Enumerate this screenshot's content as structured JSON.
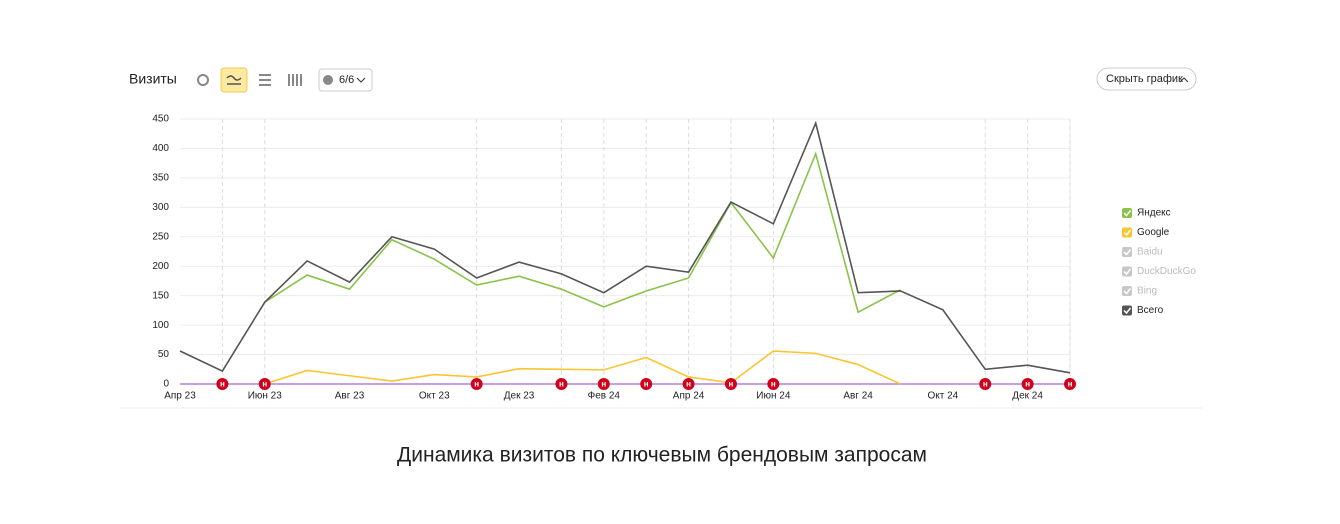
{
  "toolbar": {
    "metric": "Визиты",
    "segments": "6/6",
    "hide_button": "Скрыть график"
  },
  "annotation_marker": "н",
  "chart_data": {
    "type": "line",
    "caption": "Динамика визитов по ключевым брендовым запросам",
    "categories": [
      "Апр 23",
      null,
      "Июн 23",
      null,
      "Авг 23",
      null,
      "Окт 23",
      null,
      "Дек 23",
      null,
      "Фев 24",
      null,
      "Апр 24",
      null,
      "Июн 24",
      null,
      "Авг 24",
      null,
      "Окт 24",
      null,
      "Дек 24",
      null
    ],
    "series": [
      {
        "name": "Яндекс",
        "color": "#8bc34a",
        "checked": true,
        "values": [
          null,
          null,
          139,
          185,
          161,
          245,
          212,
          168,
          183,
          161,
          131,
          158,
          180,
          308,
          214,
          391,
          122,
          160,
          null,
          null,
          null,
          null
        ]
      },
      {
        "name": "Google",
        "color": "#fbc531",
        "checked": true,
        "values": [
          null,
          null,
          0,
          23,
          14,
          5,
          16,
          12,
          26,
          25,
          24,
          45,
          12,
          2,
          56,
          52,
          33,
          0,
          null,
          null,
          null,
          null
        ]
      },
      {
        "name": "Baidu",
        "color": "#c8c8c8",
        "checked": false
      },
      {
        "name": "DuckDuckGo",
        "color": "#c8c8c8",
        "checked": false
      },
      {
        "name": "Bing",
        "color": "#c8c8c8",
        "checked": false
      },
      {
        "name": "Всего",
        "color": "#555555",
        "checked": true,
        "values": [
          56,
          22,
          139,
          209,
          173,
          250,
          229,
          180,
          207,
          187,
          155,
          200,
          190,
          309,
          272,
          443,
          155,
          158,
          126,
          25,
          32,
          19
        ]
      }
    ],
    "ylim": [
      0,
      450
    ],
    "yticks": [
      0,
      50,
      100,
      150,
      200,
      250,
      300,
      350,
      400,
      450
    ],
    "grid": true
  }
}
